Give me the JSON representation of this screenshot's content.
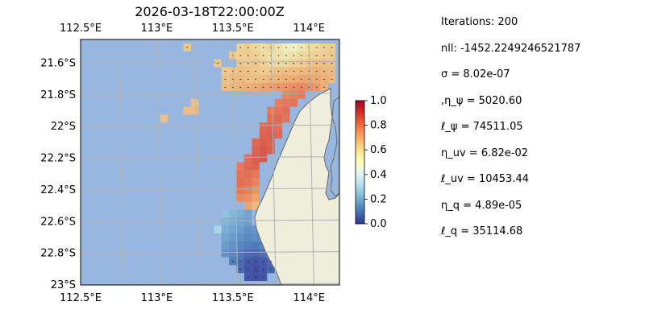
{
  "chart_data": {
    "type": "heatmap",
    "title": "2026-03-18T22:00:00Z",
    "x_ticks": [
      "112.5°E",
      "113°E",
      "113.5°E",
      "114°E"
    ],
    "x_tick_values": [
      112.5,
      113.0,
      113.5,
      114.0
    ],
    "y_ticks": [
      "21.6°S",
      "21.8°S",
      "22°S",
      "22.2°S",
      "22.4°S",
      "22.6°S",
      "22.8°S",
      "23°S"
    ],
    "y_tick_values": [
      -21.6,
      -21.8,
      -22.0,
      -22.2,
      -22.4,
      -22.6,
      -22.8,
      -23.0
    ],
    "xlim": [
      112.5,
      114.2
    ],
    "ylim": [
      -23.0,
      -21.45
    ],
    "grid": true,
    "colorbar": {
      "ticks": [
        "0.0",
        "0.2",
        "0.4",
        "0.6",
        "0.8",
        "1.0"
      ],
      "tick_values": [
        0.0,
        0.2,
        0.4,
        0.6,
        0.8,
        1.0
      ],
      "range": [
        0.0,
        1.0
      ],
      "colormap": "RdYlBu_r"
    },
    "colors": {
      "ocean": "#98b7e0",
      "land": "#efeddc",
      "coast": "#666666",
      "grid": "#b0b0b0",
      "arrows": "#222222"
    },
    "cell_size_deg": 0.025,
    "cells": [
      {
        "lon": 113.55,
        "lat": -21.5,
        "value": 0.62
      },
      {
        "lon": 113.6,
        "lat": -21.5,
        "value": 0.63
      },
      {
        "lon": 113.65,
        "lat": -21.5,
        "value": 0.6
      },
      {
        "lon": 113.7,
        "lat": -21.5,
        "value": 0.58
      },
      {
        "lon": 113.75,
        "lat": -21.5,
        "value": 0.61
      },
      {
        "lon": 113.8,
        "lat": -21.5,
        "value": 0.56
      },
      {
        "lon": 113.85,
        "lat": -21.5,
        "value": 0.52
      },
      {
        "lon": 113.9,
        "lat": -21.5,
        "value": 0.5
      },
      {
        "lon": 113.95,
        "lat": -21.5,
        "value": 0.55
      },
      {
        "lon": 114.0,
        "lat": -21.5,
        "value": 0.58
      },
      {
        "lon": 114.05,
        "lat": -21.5,
        "value": 0.6
      },
      {
        "lon": 114.1,
        "lat": -21.5,
        "value": 0.62
      },
      {
        "lon": 114.15,
        "lat": -21.5,
        "value": 0.63
      },
      {
        "lon": 113.5,
        "lat": -21.55,
        "value": 0.64
      },
      {
        "lon": 113.55,
        "lat": -21.55,
        "value": 0.62
      },
      {
        "lon": 113.6,
        "lat": -21.55,
        "value": 0.63
      },
      {
        "lon": 113.65,
        "lat": -21.55,
        "value": 0.62
      },
      {
        "lon": 113.7,
        "lat": -21.55,
        "value": 0.6
      },
      {
        "lon": 113.75,
        "lat": -21.55,
        "value": 0.58
      },
      {
        "lon": 113.8,
        "lat": -21.55,
        "value": 0.57
      },
      {
        "lon": 113.85,
        "lat": -21.55,
        "value": 0.55
      },
      {
        "lon": 113.9,
        "lat": -21.55,
        "value": 0.57
      },
      {
        "lon": 113.95,
        "lat": -21.55,
        "value": 0.6
      },
      {
        "lon": 114.0,
        "lat": -21.55,
        "value": 0.61
      },
      {
        "lon": 114.05,
        "lat": -21.55,
        "value": 0.62
      },
      {
        "lon": 114.1,
        "lat": -21.55,
        "value": 0.63
      },
      {
        "lon": 114.15,
        "lat": -21.55,
        "value": 0.64
      },
      {
        "lon": 113.55,
        "lat": -21.6,
        "value": 0.64
      },
      {
        "lon": 113.6,
        "lat": -21.6,
        "value": 0.63
      },
      {
        "lon": 113.65,
        "lat": -21.6,
        "value": 0.65
      },
      {
        "lon": 113.7,
        "lat": -21.6,
        "value": 0.62
      },
      {
        "lon": 113.75,
        "lat": -21.6,
        "value": 0.6
      },
      {
        "lon": 113.8,
        "lat": -21.6,
        "value": 0.59
      },
      {
        "lon": 113.85,
        "lat": -21.6,
        "value": 0.6
      },
      {
        "lon": 113.9,
        "lat": -21.6,
        "value": 0.62
      },
      {
        "lon": 113.95,
        "lat": -21.6,
        "value": 0.63
      },
      {
        "lon": 114.0,
        "lat": -21.6,
        "value": 0.64
      },
      {
        "lon": 114.05,
        "lat": -21.6,
        "value": 0.66
      },
      {
        "lon": 114.1,
        "lat": -21.6,
        "value": 0.66
      },
      {
        "lon": 114.15,
        "lat": -21.6,
        "value": 0.65
      },
      {
        "lon": 113.45,
        "lat": -21.65,
        "value": 0.64
      },
      {
        "lon": 113.5,
        "lat": -21.65,
        "value": 0.65
      },
      {
        "lon": 113.55,
        "lat": -21.65,
        "value": 0.66
      },
      {
        "lon": 113.6,
        "lat": -21.65,
        "value": 0.66
      },
      {
        "lon": 113.65,
        "lat": -21.65,
        "value": 0.64
      },
      {
        "lon": 113.7,
        "lat": -21.65,
        "value": 0.63
      },
      {
        "lon": 113.75,
        "lat": -21.65,
        "value": 0.64
      },
      {
        "lon": 113.8,
        "lat": -21.65,
        "value": 0.66
      },
      {
        "lon": 113.85,
        "lat": -21.65,
        "value": 0.66
      },
      {
        "lon": 113.9,
        "lat": -21.65,
        "value": 0.67
      },
      {
        "lon": 113.95,
        "lat": -21.65,
        "value": 0.68
      },
      {
        "lon": 114.0,
        "lat": -21.65,
        "value": 0.68
      },
      {
        "lon": 114.05,
        "lat": -21.65,
        "value": 0.69
      },
      {
        "lon": 114.1,
        "lat": -21.65,
        "value": 0.68
      },
      {
        "lon": 114.15,
        "lat": -21.65,
        "value": 0.67
      },
      {
        "lon": 113.45,
        "lat": -21.7,
        "value": 0.66
      },
      {
        "lon": 113.5,
        "lat": -21.7,
        "value": 0.67
      },
      {
        "lon": 113.55,
        "lat": -21.7,
        "value": 0.68
      },
      {
        "lon": 113.6,
        "lat": -21.7,
        "value": 0.66
      },
      {
        "lon": 113.65,
        "lat": -21.7,
        "value": 0.66
      },
      {
        "lon": 113.7,
        "lat": -21.7,
        "value": 0.67
      },
      {
        "lon": 113.75,
        "lat": -21.7,
        "value": 0.68
      },
      {
        "lon": 113.8,
        "lat": -21.7,
        "value": 0.69
      },
      {
        "lon": 113.85,
        "lat": -21.7,
        "value": 0.7
      },
      {
        "lon": 113.9,
        "lat": -21.7,
        "value": 0.71
      },
      {
        "lon": 113.95,
        "lat": -21.7,
        "value": 0.72
      },
      {
        "lon": 114.0,
        "lat": -21.7,
        "value": 0.72
      },
      {
        "lon": 114.05,
        "lat": -21.7,
        "value": 0.71
      },
      {
        "lon": 114.1,
        "lat": -21.7,
        "value": 0.7
      },
      {
        "lon": 114.15,
        "lat": -21.7,
        "value": 0.68
      },
      {
        "lon": 113.45,
        "lat": -21.75,
        "value": 0.67
      },
      {
        "lon": 113.5,
        "lat": -21.75,
        "value": 0.68
      },
      {
        "lon": 113.55,
        "lat": -21.75,
        "value": 0.69
      },
      {
        "lon": 113.6,
        "lat": -21.75,
        "value": 0.7
      },
      {
        "lon": 113.65,
        "lat": -21.75,
        "value": 0.71
      },
      {
        "lon": 113.7,
        "lat": -21.75,
        "value": 0.72
      },
      {
        "lon": 113.75,
        "lat": -21.75,
        "value": 0.73
      },
      {
        "lon": 113.8,
        "lat": -21.75,
        "value": 0.74
      },
      {
        "lon": 113.85,
        "lat": -21.75,
        "value": 0.75
      },
      {
        "lon": 113.9,
        "lat": -21.75,
        "value": 0.76
      },
      {
        "lon": 113.95,
        "lat": -21.75,
        "value": 0.77
      },
      {
        "lon": 114.0,
        "lat": -21.75,
        "value": 0.76
      },
      {
        "lon": 114.05,
        "lat": -21.75,
        "value": 0.74
      },
      {
        "lon": 114.1,
        "lat": -21.75,
        "value": 0.7
      },
      {
        "lon": 113.85,
        "lat": -21.8,
        "value": 0.78
      },
      {
        "lon": 113.9,
        "lat": -21.8,
        "value": 0.79
      },
      {
        "lon": 113.95,
        "lat": -21.8,
        "value": 0.8
      },
      {
        "lon": 113.8,
        "lat": -21.85,
        "value": 0.79
      },
      {
        "lon": 113.85,
        "lat": -21.85,
        "value": 0.8
      },
      {
        "lon": 113.9,
        "lat": -21.85,
        "value": 0.81
      },
      {
        "lon": 113.75,
        "lat": -21.9,
        "value": 0.8
      },
      {
        "lon": 113.8,
        "lat": -21.9,
        "value": 0.81
      },
      {
        "lon": 113.85,
        "lat": -21.9,
        "value": 0.82
      },
      {
        "lon": 113.75,
        "lat": -21.95,
        "value": 0.82
      },
      {
        "lon": 113.8,
        "lat": -21.95,
        "value": 0.83
      },
      {
        "lon": 113.85,
        "lat": -21.95,
        "value": 0.81
      },
      {
        "lon": 113.7,
        "lat": -22.0,
        "value": 0.83
      },
      {
        "lon": 113.75,
        "lat": -22.0,
        "value": 0.84
      },
      {
        "lon": 113.8,
        "lat": -22.0,
        "value": 0.82
      },
      {
        "lon": 113.7,
        "lat": -22.05,
        "value": 0.84
      },
      {
        "lon": 113.75,
        "lat": -22.05,
        "value": 0.85
      },
      {
        "lon": 113.8,
        "lat": -22.05,
        "value": 0.83
      },
      {
        "lon": 113.65,
        "lat": -22.1,
        "value": 0.83
      },
      {
        "lon": 113.7,
        "lat": -22.1,
        "value": 0.85
      },
      {
        "lon": 113.75,
        "lat": -22.1,
        "value": 0.84
      },
      {
        "lon": 113.65,
        "lat": -22.15,
        "value": 0.84
      },
      {
        "lon": 113.7,
        "lat": -22.15,
        "value": 0.86
      },
      {
        "lon": 113.75,
        "lat": -22.15,
        "value": 0.85
      },
      {
        "lon": 113.6,
        "lat": -22.2,
        "value": 0.82
      },
      {
        "lon": 113.65,
        "lat": -22.2,
        "value": 0.85
      },
      {
        "lon": 113.7,
        "lat": -22.2,
        "value": 0.86
      },
      {
        "lon": 113.55,
        "lat": -22.25,
        "value": 0.8
      },
      {
        "lon": 113.6,
        "lat": -22.25,
        "value": 0.83
      },
      {
        "lon": 113.65,
        "lat": -22.25,
        "value": 0.84
      },
      {
        "lon": 113.55,
        "lat": -22.3,
        "value": 0.81
      },
      {
        "lon": 113.6,
        "lat": -22.3,
        "value": 0.82
      },
      {
        "lon": 113.65,
        "lat": -22.3,
        "value": 0.8
      },
      {
        "lon": 113.55,
        "lat": -22.35,
        "value": 0.82
      },
      {
        "lon": 113.6,
        "lat": -22.35,
        "value": 0.81
      },
      {
        "lon": 113.65,
        "lat": -22.35,
        "value": 0.78
      },
      {
        "lon": 113.55,
        "lat": -22.4,
        "value": 0.8
      },
      {
        "lon": 113.6,
        "lat": -22.4,
        "value": 0.79
      },
      {
        "lon": 113.65,
        "lat": -22.4,
        "value": 0.75
      },
      {
        "lon": 113.55,
        "lat": -22.45,
        "value": 0.77
      },
      {
        "lon": 113.6,
        "lat": -22.45,
        "value": 0.76
      },
      {
        "lon": 113.65,
        "lat": -22.45,
        "value": 0.72
      },
      {
        "lon": 113.6,
        "lat": -22.5,
        "value": 0.72
      },
      {
        "lon": 113.65,
        "lat": -22.5,
        "value": 0.68
      },
      {
        "lon": 113.45,
        "lat": -22.55,
        "value": 0.25
      },
      {
        "lon": 113.5,
        "lat": -22.55,
        "value": 0.22
      },
      {
        "lon": 113.55,
        "lat": -22.55,
        "value": 0.2
      },
      {
        "lon": 113.6,
        "lat": -22.55,
        "value": 0.18
      },
      {
        "lon": 113.45,
        "lat": -22.6,
        "value": 0.22
      },
      {
        "lon": 113.5,
        "lat": -22.6,
        "value": 0.2
      },
      {
        "lon": 113.55,
        "lat": -22.6,
        "value": 0.18
      },
      {
        "lon": 113.6,
        "lat": -22.6,
        "value": 0.17
      },
      {
        "lon": 113.4,
        "lat": -22.65,
        "value": 0.3
      },
      {
        "lon": 113.45,
        "lat": -22.65,
        "value": 0.2
      },
      {
        "lon": 113.5,
        "lat": -22.65,
        "value": 0.18
      },
      {
        "lon": 113.55,
        "lat": -22.65,
        "value": 0.16
      },
      {
        "lon": 113.6,
        "lat": -22.65,
        "value": 0.14
      },
      {
        "lon": 113.65,
        "lat": -22.65,
        "value": 0.15
      },
      {
        "lon": 113.7,
        "lat": -22.65,
        "value": 0.16
      },
      {
        "lon": 113.45,
        "lat": -22.7,
        "value": 0.18
      },
      {
        "lon": 113.5,
        "lat": -22.7,
        "value": 0.16
      },
      {
        "lon": 113.55,
        "lat": -22.7,
        "value": 0.14
      },
      {
        "lon": 113.6,
        "lat": -22.7,
        "value": 0.12
      },
      {
        "lon": 113.65,
        "lat": -22.7,
        "value": 0.13
      },
      {
        "lon": 113.7,
        "lat": -22.7,
        "value": 0.15
      },
      {
        "lon": 113.75,
        "lat": -22.7,
        "value": 0.16
      },
      {
        "lon": 113.45,
        "lat": -22.75,
        "value": 0.16
      },
      {
        "lon": 113.5,
        "lat": -22.75,
        "value": 0.14
      },
      {
        "lon": 113.55,
        "lat": -22.75,
        "value": 0.12
      },
      {
        "lon": 113.6,
        "lat": -22.75,
        "value": 0.1
      },
      {
        "lon": 113.65,
        "lat": -22.75,
        "value": 0.09
      },
      {
        "lon": 113.7,
        "lat": -22.75,
        "value": 0.11
      },
      {
        "lon": 113.75,
        "lat": -22.75,
        "value": 0.13
      },
      {
        "lon": 113.45,
        "lat": -22.8,
        "value": 0.14
      },
      {
        "lon": 113.5,
        "lat": -22.8,
        "value": 0.12
      },
      {
        "lon": 113.55,
        "lat": -22.8,
        "value": 0.09
      },
      {
        "lon": 113.6,
        "lat": -22.8,
        "value": 0.06
      },
      {
        "lon": 113.65,
        "lat": -22.8,
        "value": 0.05
      },
      {
        "lon": 113.7,
        "lat": -22.8,
        "value": 0.07
      },
      {
        "lon": 113.75,
        "lat": -22.8,
        "value": 0.1
      },
      {
        "lon": 113.5,
        "lat": -22.85,
        "value": 0.1
      },
      {
        "lon": 113.55,
        "lat": -22.85,
        "value": 0.07
      },
      {
        "lon": 113.6,
        "lat": -22.85,
        "value": 0.03
      },
      {
        "lon": 113.65,
        "lat": -22.85,
        "value": 0.02
      },
      {
        "lon": 113.7,
        "lat": -22.85,
        "value": 0.03
      },
      {
        "lon": 113.75,
        "lat": -22.85,
        "value": 0.06
      },
      {
        "lon": 113.55,
        "lat": -22.9,
        "value": 0.06
      },
      {
        "lon": 113.6,
        "lat": -22.9,
        "value": 0.02
      },
      {
        "lon": 113.65,
        "lat": -22.9,
        "value": 0.01
      },
      {
        "lon": 113.7,
        "lat": -22.9,
        "value": 0.02
      },
      {
        "lon": 113.75,
        "lat": -22.9,
        "value": 0.05
      },
      {
        "lon": 113.6,
        "lat": -22.95,
        "value": 0.02
      },
      {
        "lon": 113.65,
        "lat": -22.95,
        "value": 0.01
      },
      {
        "lon": 113.7,
        "lat": -22.95,
        "value": 0.02
      },
      {
        "lon": 113.2,
        "lat": -21.9,
        "value": 0.66
      },
      {
        "lon": 113.25,
        "lat": -21.9,
        "value": 0.67
      },
      {
        "lon": 113.25,
        "lat": -21.85,
        "value": 0.66
      },
      {
        "lon": 113.05,
        "lat": -21.95,
        "value": 0.66
      },
      {
        "lon": 113.4,
        "lat": -21.6,
        "value": 0.64
      },
      {
        "lon": 113.2,
        "lat": -21.5,
        "value": 0.64
      }
    ]
  },
  "stats": [
    "Iterations: 200",
    "nll: -1452.2249246521787",
    "σ = 8.02e-07",
    ",η_ψ = 5020.60",
    "ℓ_ψ = 74511.05",
    "η_uv = 6.82e-02",
    "ℓ_uv = 10453.44",
    "η_q = 4.89e-05",
    "ℓ_q = 35114.68"
  ]
}
